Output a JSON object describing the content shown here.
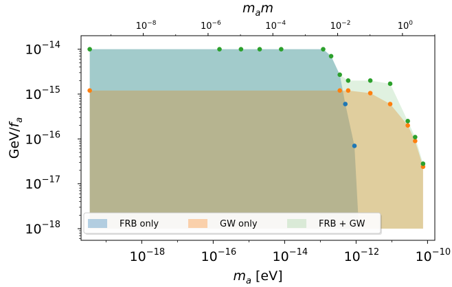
{
  "chart_data": {
    "type": "area",
    "xlabel": "m_a [eV]",
    "ylabel": "GeV/f_a",
    "top_xlabel": "m_a m",
    "x_scale": "log",
    "y_scale": "log",
    "xlim": [
      2e-20,
      1.6e-10
    ],
    "ylim": [
      5.5e-19,
      2e-14
    ],
    "top_axis_xlim": [
      1.2e-10,
      10.0
    ],
    "x_ticks": [
      {
        "value": 1e-18,
        "base": "10",
        "exp": "−18"
      },
      {
        "value": 1e-16,
        "base": "10",
        "exp": "−16"
      },
      {
        "value": 1e-14,
        "base": "10",
        "exp": "−14"
      },
      {
        "value": 1e-12,
        "base": "10",
        "exp": "−12"
      },
      {
        "value": 1e-10,
        "base": "10",
        "exp": "−10"
      }
    ],
    "y_ticks": [
      {
        "value": 1e-14,
        "base": "10",
        "exp": "−14"
      },
      {
        "value": 1e-15,
        "base": "10",
        "exp": "−15"
      },
      {
        "value": 1e-16,
        "base": "10",
        "exp": "−16"
      },
      {
        "value": 1e-17,
        "base": "10",
        "exp": "−17"
      },
      {
        "value": 1e-18,
        "base": "10",
        "exp": "−18"
      }
    ],
    "top_ticks": [
      {
        "value": 1e-08,
        "base": "10",
        "exp": "−8"
      },
      {
        "value": 1e-06,
        "base": "10",
        "exp": "−6"
      },
      {
        "value": 0.0001,
        "base": "10",
        "exp": "−4"
      },
      {
        "value": 0.01,
        "base": "10",
        "exp": "−2"
      },
      {
        "value": 1.0,
        "base": "10",
        "exp": "0"
      }
    ],
    "series": [
      {
        "name": "FRB only",
        "fill_color": "#1f77b4",
        "fill_opacity": 0.32,
        "marker_color": "#1f77b4",
        "floor": 1e-18,
        "points": [
          [
            3.5e-20,
            1e-14
          ],
          [
            1.5e-16,
            1e-14
          ],
          [
            6e-16,
            1e-14
          ],
          [
            2e-15,
            1e-14
          ],
          [
            8e-15,
            1e-14
          ],
          [
            1.2e-13,
            1e-14
          ],
          [
            2e-13,
            7e-15
          ],
          [
            3.5e-13,
            2.7e-15
          ],
          [
            5e-13,
            6e-16
          ],
          [
            9e-13,
            7e-17
          ],
          [
            1.2e-12,
            1e-18
          ]
        ],
        "markers": [
          [
            5e-13,
            6e-16
          ],
          [
            9e-13,
            7e-17
          ]
        ]
      },
      {
        "name": "GW only",
        "fill_color": "#ff7f0e",
        "fill_opacity": 0.32,
        "marker_color": "#ff7f0e",
        "floor": 1e-18,
        "points": [
          [
            3.5e-20,
            1.2e-15
          ],
          [
            3.5e-13,
            1.2e-15
          ],
          [
            6e-13,
            1.2e-15
          ],
          [
            2.5e-12,
            1.05e-15
          ],
          [
            9e-12,
            6e-16
          ],
          [
            2.8e-11,
            2e-16
          ],
          [
            4.5e-11,
            9e-17
          ],
          [
            7.5e-11,
            2.4e-17
          ],
          [
            7.5e-11,
            1e-18
          ]
        ],
        "markers": [
          [
            3.5e-20,
            1.2e-15
          ],
          [
            3.5e-13,
            1.2e-15
          ],
          [
            6e-13,
            1.2e-15
          ],
          [
            2.5e-12,
            1.05e-15
          ],
          [
            9e-12,
            6e-16
          ],
          [
            2.8e-11,
            2e-16
          ],
          [
            4.5e-11,
            9e-17
          ],
          [
            7.5e-11,
            2.4e-17
          ]
        ]
      },
      {
        "name": "FRB + GW",
        "fill_color": "#2ca02c",
        "fill_opacity": 0.15,
        "marker_color": "#2ca02c",
        "floor": 1e-18,
        "points": [
          [
            3.5e-20,
            1e-14
          ],
          [
            1.5e-16,
            1e-14
          ],
          [
            6e-16,
            1e-14
          ],
          [
            2e-15,
            1e-14
          ],
          [
            8e-15,
            1e-14
          ],
          [
            1.2e-13,
            1e-14
          ],
          [
            2e-13,
            7e-15
          ],
          [
            3.5e-13,
            2.7e-15
          ],
          [
            6e-13,
            2e-15
          ],
          [
            2.5e-12,
            2e-15
          ],
          [
            9e-12,
            1.7e-15
          ],
          [
            2.8e-11,
            2.5e-16
          ],
          [
            4.5e-11,
            1.1e-16
          ],
          [
            7.5e-11,
            2.8e-17
          ],
          [
            7.5e-11,
            1e-18
          ]
        ],
        "markers": [
          [
            3.5e-20,
            1e-14
          ],
          [
            1.5e-16,
            1e-14
          ],
          [
            6e-16,
            1e-14
          ],
          [
            2e-15,
            1e-14
          ],
          [
            8e-15,
            1e-14
          ],
          [
            1.2e-13,
            1e-14
          ],
          [
            2e-13,
            7e-15
          ],
          [
            3.5e-13,
            2.7e-15
          ],
          [
            6e-13,
            2e-15
          ],
          [
            2.5e-12,
            2e-15
          ],
          [
            9e-12,
            1.7e-15
          ],
          [
            2.8e-11,
            2.5e-16
          ],
          [
            4.5e-11,
            1.1e-16
          ],
          [
            7.5e-11,
            2.8e-17
          ]
        ]
      }
    ],
    "legend": {
      "placement": "bottom",
      "entries": [
        {
          "label": "FRB only",
          "color": "#1f77b4",
          "opacity": 0.32
        },
        {
          "label": "GW only",
          "color": "#ff7f0e",
          "opacity": 0.32
        },
        {
          "label": "FRB + GW",
          "color": "#2ca02c",
          "opacity": 0.15
        }
      ]
    },
    "grid": false
  }
}
